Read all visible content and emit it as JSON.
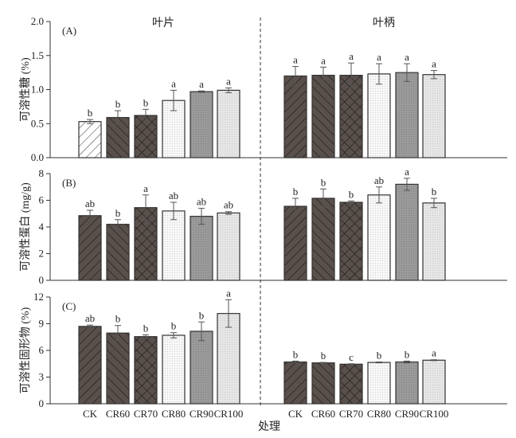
{
  "chart_data": {
    "type": "bar",
    "xlabel": "处理",
    "categories": [
      "CK",
      "CR60",
      "CR70",
      "CR80",
      "CR90",
      "CR100"
    ],
    "groups": [
      "叶片",
      "叶柄"
    ],
    "panels": [
      {
        "label": "(A)",
        "ylabel": "可溶性糖 (%)",
        "ylim": [
          0,
          2.0
        ],
        "ticks": [
          "0.0",
          "0.5",
          "1.0",
          "1.5",
          "2.0"
        ],
        "tickvals": [
          0,
          0.5,
          1,
          1.5,
          2
        ],
        "series": [
          {
            "group": "叶片",
            "values": [
              0.53,
              0.59,
              0.62,
              0.84,
              0.97,
              0.99
            ],
            "errors": [
              0.03,
              0.1,
              0.09,
              0.15,
              0.01,
              0.035
            ],
            "letters": [
              "b",
              "b",
              "b",
              "a",
              "a",
              "a"
            ]
          },
          {
            "group": "叶柄",
            "values": [
              1.2,
              1.21,
              1.21,
              1.23,
              1.25,
              1.22
            ],
            "errors": [
              0.14,
              0.12,
              0.18,
              0.15,
              0.13,
              0.06
            ],
            "letters": [
              "a",
              "a",
              "a",
              "a",
              "a",
              "a"
            ]
          }
        ]
      },
      {
        "label": "(B)",
        "ylabel": "可溶性蛋白 (mg/g)",
        "ylim": [
          0,
          8
        ],
        "ticks": [
          "0",
          "2",
          "4",
          "6",
          "8"
        ],
        "tickvals": [
          0,
          2,
          4,
          6,
          8
        ],
        "series": [
          {
            "group": "叶片",
            "values": [
              4.85,
              4.2,
              5.45,
              5.2,
              4.8,
              5.05
            ],
            "errors": [
              0.4,
              0.35,
              0.95,
              0.65,
              0.6,
              0.1
            ],
            "letters": [
              "ab",
              "b",
              "a",
              "ab",
              "ab",
              "ab"
            ]
          },
          {
            "group": "叶柄",
            "values": [
              5.55,
              6.15,
              5.85,
              6.4,
              7.2,
              5.8
            ],
            "errors": [
              0.6,
              0.7,
              0.1,
              0.6,
              0.45,
              0.35
            ],
            "letters": [
              "b",
              "b",
              "b",
              "ab",
              "a",
              "b"
            ]
          }
        ]
      },
      {
        "label": "(C)",
        "ylabel": "可溶性固形物 (%)",
        "ylim": [
          0,
          12
        ],
        "ticks": [
          "0",
          "3",
          "6",
          "9",
          "12"
        ],
        "tickvals": [
          0,
          3,
          6,
          9,
          12
        ],
        "series": [
          {
            "group": "叶片",
            "values": [
              8.7,
              7.95,
              7.55,
              7.7,
              8.15,
              10.15
            ],
            "errors": [
              0.15,
              0.85,
              0.2,
              0.3,
              1.05,
              1.55
            ],
            "letters": [
              "ab",
              "b",
              "b",
              "b",
              "b",
              "a"
            ]
          },
          {
            "group": "叶柄",
            "values": [
              4.7,
              4.6,
              4.45,
              4.65,
              4.7,
              4.9
            ],
            "errors": [
              0.1,
              0.05,
              0.05,
              0.05,
              0.1,
              0.05
            ],
            "letters": [
              "b",
              "b",
              "c",
              "b",
              "b",
              "a"
            ]
          }
        ]
      }
    ]
  }
}
